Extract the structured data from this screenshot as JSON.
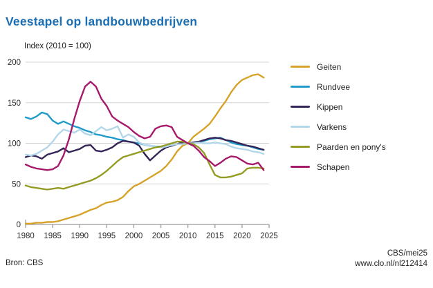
{
  "page": {
    "title": "Veestapel op landbouwbedrijven"
  },
  "colors": {
    "title": "#1a6fb4",
    "grid": "#d4d4d4",
    "axis": "#9a9a9a",
    "text": "#2b2b2b"
  },
  "footer": {
    "source": "Bron: CBS",
    "credit": "CBS/mei25",
    "url": "www.clo.nl/nl212414"
  },
  "chart_data": {
    "type": "line",
    "title": "Veestapel op landbouwbedrijven",
    "subtitle": "Index (2010 = 100)",
    "xlabel": "",
    "ylabel": "Index (2010 = 100)",
    "xlim": [
      1980,
      2025
    ],
    "ylim": [
      0,
      200
    ],
    "xticks": [
      1980,
      1985,
      1990,
      1995,
      2000,
      2005,
      2010,
      2015,
      2020,
      2025
    ],
    "yticks": [
      0,
      50,
      100,
      150,
      200
    ],
    "grid": true,
    "legend_position": "right",
    "x": [
      1980,
      1981,
      1982,
      1983,
      1984,
      1985,
      1986,
      1987,
      1988,
      1989,
      1990,
      1991,
      1992,
      1993,
      1994,
      1995,
      1996,
      1997,
      1998,
      1999,
      2000,
      2001,
      2002,
      2003,
      2004,
      2005,
      2006,
      2007,
      2008,
      2009,
      2010,
      2011,
      2012,
      2013,
      2014,
      2015,
      2016,
      2017,
      2018,
      2019,
      2020,
      2021,
      2022,
      2023,
      2024
    ],
    "series": [
      {
        "id": "geiten",
        "name": "Geiten",
        "color": "#d7a229",
        "values": [
          1,
          1,
          2,
          2,
          3,
          3,
          4,
          6,
          8,
          10,
          12,
          15,
          18,
          20,
          24,
          27,
          28,
          30,
          34,
          41,
          47,
          50,
          54,
          58,
          62,
          66,
          72,
          80,
          90,
          97,
          100,
          108,
          113,
          118,
          124,
          133,
          143,
          152,
          163,
          172,
          178,
          181,
          184,
          185,
          181
        ]
      },
      {
        "id": "rundvee",
        "name": "Rundvee",
        "color": "#1f9ac9",
        "values": [
          132,
          130,
          133,
          138,
          136,
          128,
          124,
          127,
          124,
          121,
          119,
          116,
          114,
          111,
          110,
          108,
          107,
          105,
          104,
          102,
          101,
          100,
          98,
          97,
          96,
          96,
          97,
          98,
          99,
          100,
          100,
          101,
          102,
          103,
          105,
          106,
          107,
          104,
          101,
          99,
          98,
          97,
          95,
          93,
          92
        ]
      },
      {
        "id": "kippen",
        "name": "Kippen",
        "color": "#342457",
        "values": [
          83,
          85,
          84,
          81,
          86,
          88,
          90,
          94,
          89,
          91,
          93,
          97,
          98,
          91,
          90,
          92,
          95,
          100,
          103,
          102,
          101,
          97,
          87,
          79,
          85,
          91,
          95,
          97,
          99,
          101,
          100,
          101,
          102,
          104,
          106,
          107,
          106,
          104,
          103,
          101,
          99,
          97,
          96,
          94,
          92
        ]
      },
      {
        "id": "varkens",
        "name": "Varkens",
        "color": "#b3d7ea",
        "values": [
          86,
          85,
          87,
          91,
          95,
          102,
          111,
          117,
          115,
          113,
          117,
          112,
          110,
          115,
          120,
          116,
          118,
          121,
          107,
          111,
          108,
          101,
          98,
          97,
          96,
          95,
          96,
          98,
          99,
          99,
          100,
          100,
          101,
          100,
          100,
          101,
          100,
          99,
          96,
          94,
          93,
          92,
          90,
          89,
          87
        ]
      },
      {
        "id": "paarden",
        "name": "Paarden en pony's",
        "color": "#949b23",
        "values": [
          48,
          46,
          45,
          44,
          43,
          44,
          45,
          44,
          46,
          48,
          50,
          52,
          54,
          57,
          61,
          66,
          72,
          78,
          83,
          85,
          87,
          89,
          91,
          93,
          95,
          96,
          98,
          100,
          102,
          102,
          100,
          99,
          95,
          88,
          74,
          61,
          58,
          58,
          59,
          61,
          63,
          69,
          70,
          70,
          69
        ]
      },
      {
        "id": "schapen",
        "name": "Schapen",
        "color": "#a6196b",
        "values": [
          74,
          71,
          69,
          68,
          67,
          68,
          72,
          85,
          105,
          130,
          152,
          170,
          176,
          170,
          155,
          146,
          133,
          128,
          124,
          120,
          114,
          109,
          106,
          108,
          118,
          121,
          122,
          120,
          108,
          104,
          100,
          97,
          91,
          83,
          78,
          72,
          76,
          81,
          84,
          83,
          79,
          75,
          74,
          76,
          67
        ]
      }
    ]
  }
}
